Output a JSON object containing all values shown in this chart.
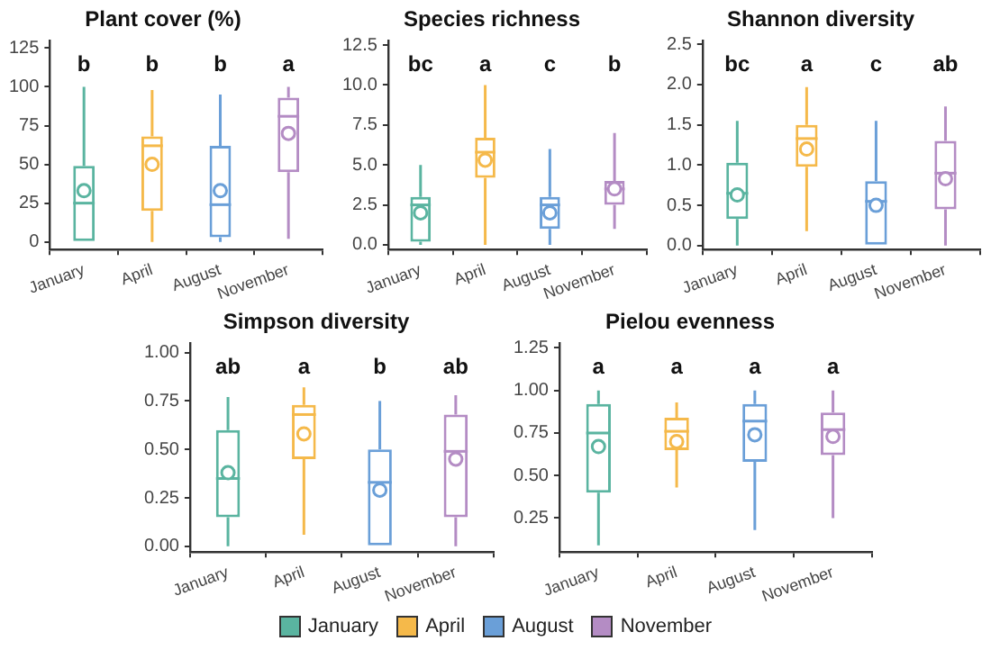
{
  "chart_data": [
    {
      "type": "box",
      "title": "Plant cover (%)",
      "categories": [
        "January",
        "April",
        "August",
        "November"
      ],
      "series": [
        {
          "color": "#5ab4a0",
          "boxes": [
            {
              "low": 0,
              "q1": 0,
              "median": 25,
              "q3": 49,
              "high": 100,
              "mean": 33
            },
            null,
            null,
            null
          ]
        },
        {
          "color": "#f5b94a",
          "boxes": [
            null,
            {
              "low": 0,
              "q1": 20,
              "median": 62,
              "q3": 68,
              "high": 98,
              "mean": 50
            },
            null,
            null
          ]
        },
        {
          "color": "#6a9fd8",
          "boxes": [
            null,
            null,
            {
              "low": 0,
              "q1": 3,
              "median": 24,
              "q3": 62,
              "high": 95,
              "mean": 33
            },
            null
          ]
        },
        {
          "color": "#b48cc4",
          "boxes": [
            null,
            null,
            null,
            {
              "low": 2,
              "q1": 45,
              "median": 81,
              "q3": 93,
              "high": 100,
              "mean": 70
            }
          ]
        }
      ],
      "ylim": [
        -5,
        130
      ],
      "yticks": [
        0,
        25,
        50,
        75,
        100,
        125
      ],
      "grid": false,
      "annotations": [
        "b",
        "b",
        "b",
        "a"
      ]
    },
    {
      "type": "box",
      "title": "Species richness",
      "categories": [
        "January",
        "April",
        "August",
        "November"
      ],
      "series": [
        {
          "color": "#5ab4a0",
          "boxes": [
            {
              "low": 0,
              "q1": 0.2,
              "median": 2.5,
              "q3": 3,
              "high": 5,
              "mean": 2
            },
            null,
            null,
            null
          ]
        },
        {
          "color": "#f5b94a",
          "boxes": [
            null,
            {
              "low": 0,
              "q1": 4.2,
              "median": 5.8,
              "q3": 6.7,
              "high": 10,
              "mean": 5.3
            },
            null,
            null
          ]
        },
        {
          "color": "#6a9fd8",
          "boxes": [
            null,
            null,
            {
              "low": 0,
              "q1": 1,
              "median": 2.5,
              "q3": 3,
              "high": 6,
              "mean": 2
            },
            null
          ]
        },
        {
          "color": "#b48cc4",
          "boxes": [
            null,
            null,
            null,
            {
              "low": 1,
              "q1": 2.5,
              "median": 3.5,
              "q3": 4,
              "high": 7,
              "mean": 3.5
            }
          ]
        }
      ],
      "ylim": [
        -0.3,
        12.8
      ],
      "yticks": [
        {
          "value": 0,
          "label": "0.0"
        },
        {
          "value": 2.5,
          "label": "2.5"
        },
        {
          "value": 5,
          "label": "5.0"
        },
        {
          "value": 7.5,
          "label": "7.5"
        },
        {
          "value": 10,
          "label": "10.0"
        },
        {
          "value": 12.5,
          "label": "12.5"
        }
      ],
      "grid": false,
      "annotations": [
        "bc",
        "a",
        "c",
        "b"
      ]
    },
    {
      "type": "box",
      "title": "Shannon diversity",
      "categories": [
        "January",
        "April",
        "August",
        "November"
      ],
      "series": [
        {
          "color": "#5ab4a0",
          "boxes": [
            {
              "low": 0,
              "q1": 0.33,
              "median": 0.65,
              "q3": 1.03,
              "high": 1.55,
              "mean": 0.63
            },
            null,
            null,
            null
          ]
        },
        {
          "color": "#f5b94a",
          "boxes": [
            null,
            {
              "low": 0.18,
              "q1": 0.98,
              "median": 1.33,
              "q3": 1.5,
              "high": 1.97,
              "mean": 1.2
            },
            null,
            null
          ]
        },
        {
          "color": "#6a9fd8",
          "boxes": [
            null,
            null,
            {
              "low": 0,
              "q1": 0,
              "median": 0.55,
              "q3": 0.8,
              "high": 1.55,
              "mean": 0.5
            },
            null
          ]
        },
        {
          "color": "#b48cc4",
          "boxes": [
            null,
            null,
            null,
            {
              "low": 0,
              "q1": 0.45,
              "median": 0.9,
              "q3": 1.3,
              "high": 1.73,
              "mean": 0.83
            }
          ]
        }
      ],
      "ylim": [
        -0.05,
        2.55
      ],
      "yticks": [
        {
          "value": 0,
          "label": "0.0"
        },
        {
          "value": 0.5,
          "label": "0.5"
        },
        {
          "value": 1,
          "label": "1.0"
        },
        {
          "value": 1.5,
          "label": "1.5"
        },
        {
          "value": 2,
          "label": "2.0"
        },
        {
          "value": 2.5,
          "label": "2.5"
        }
      ],
      "grid": false,
      "annotations": [
        "bc",
        "a",
        "c",
        "ab"
      ]
    },
    {
      "type": "box",
      "title": "Simpson diversity",
      "categories": [
        "January",
        "April",
        "August",
        "November"
      ],
      "series": [
        {
          "color": "#5ab4a0",
          "boxes": [
            {
              "low": 0,
              "q1": 0.15,
              "median": 0.35,
              "q3": 0.6,
              "high": 0.77,
              "mean": 0.38
            },
            null,
            null,
            null
          ]
        },
        {
          "color": "#f5b94a",
          "boxes": [
            null,
            {
              "low": 0.06,
              "q1": 0.45,
              "median": 0.68,
              "q3": 0.73,
              "high": 0.82,
              "mean": 0.58
            },
            null,
            null
          ]
        },
        {
          "color": "#6a9fd8",
          "boxes": [
            null,
            null,
            {
              "low": 0,
              "q1": 0,
              "median": 0.33,
              "q3": 0.5,
              "high": 0.75,
              "mean": 0.29
            },
            null
          ]
        },
        {
          "color": "#b48cc4",
          "boxes": [
            null,
            null,
            null,
            {
              "low": 0,
              "q1": 0.15,
              "median": 0.49,
              "q3": 0.68,
              "high": 0.78,
              "mean": 0.45
            }
          ]
        }
      ],
      "ylim": [
        -0.03,
        1.05
      ],
      "yticks": [
        {
          "value": 0,
          "label": "0.00"
        },
        {
          "value": 0.25,
          "label": "0.25"
        },
        {
          "value": 0.5,
          "label": "0.50"
        },
        {
          "value": 0.75,
          "label": "0.75"
        },
        {
          "value": 1,
          "label": "1.00"
        }
      ],
      "grid": false,
      "annotations": [
        "ab",
        "a",
        "b",
        "ab"
      ]
    },
    {
      "type": "box",
      "title": "Pielou evenness",
      "categories": [
        "January",
        "April",
        "August",
        "November"
      ],
      "series": [
        {
          "name": "January",
          "color": "#5ab4a0",
          "boxes": [
            {
              "low": 0.09,
              "q1": 0.4,
              "median": 0.75,
              "q3": 0.92,
              "high": 1,
              "mean": 0.67
            },
            null,
            null,
            null
          ]
        },
        {
          "name": "April",
          "color": "#f5b94a",
          "boxes": [
            null,
            {
              "low": 0.43,
              "q1": 0.65,
              "median": 0.76,
              "q3": 0.84,
              "high": 0.93,
              "mean": 0.7
            },
            null,
            null
          ]
        },
        {
          "name": "August",
          "color": "#6a9fd8",
          "boxes": [
            null,
            null,
            {
              "low": 0.18,
              "q1": 0.58,
              "median": 0.82,
              "q3": 0.92,
              "high": 1,
              "mean": 0.74
            },
            null
          ]
        },
        {
          "name": "November",
          "color": "#b48cc4",
          "boxes": [
            null,
            null,
            null,
            {
              "low": 0.25,
              "q1": 0.62,
              "median": 0.77,
              "q3": 0.87,
              "high": 1,
              "mean": 0.73
            }
          ]
        }
      ],
      "ylim": [
        0.05,
        1.28
      ],
      "yticks": [
        {
          "value": 0.25,
          "label": "0.25"
        },
        {
          "value": 0.5,
          "label": "0.50"
        },
        {
          "value": 0.75,
          "label": "0.75"
        },
        {
          "value": 1,
          "label": "1.00"
        },
        {
          "value": 1.25,
          "label": "1.25"
        }
      ],
      "grid": false,
      "legend": "bottom",
      "annotations": [
        "a",
        "a",
        "a",
        "a"
      ]
    }
  ]
}
